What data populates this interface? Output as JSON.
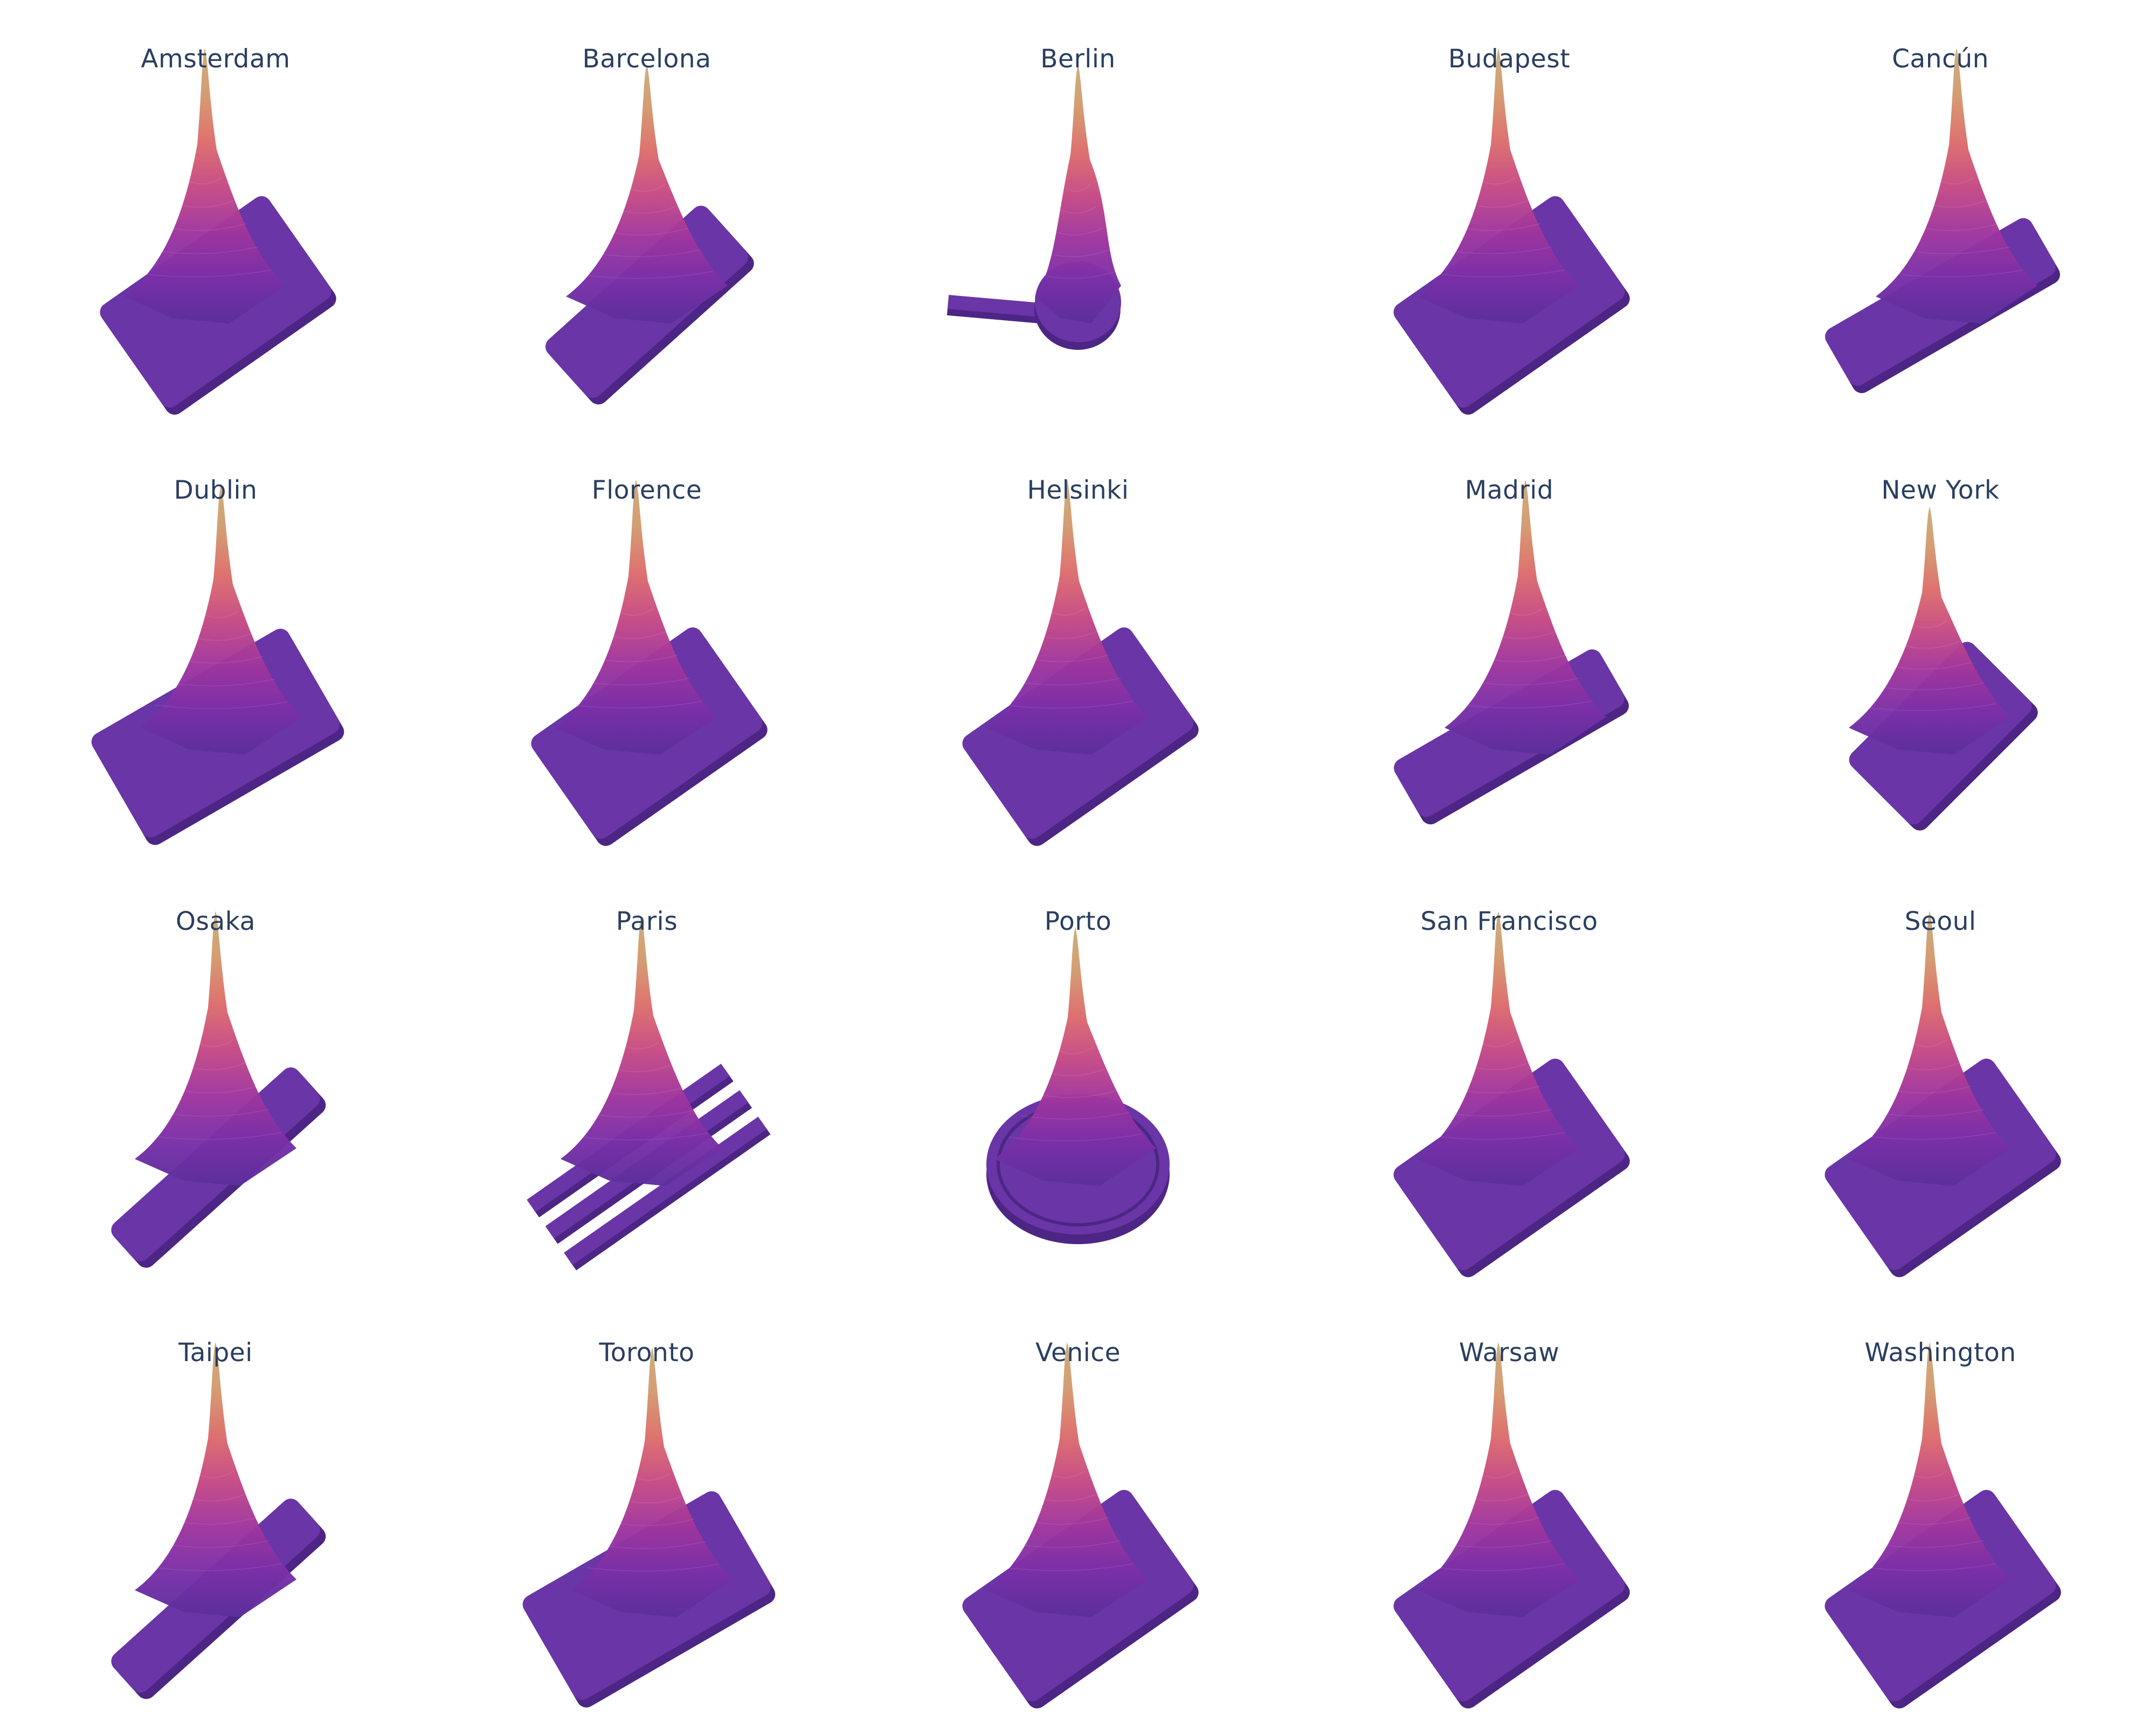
{
  "chart_data": {
    "type": "3d-surface-grid",
    "layout": {
      "rows": 4,
      "cols": 5
    },
    "colorscale": {
      "name": "plasma-like",
      "stops": [
        "#5b2f9c",
        "#7a2fa8",
        "#a0359e",
        "#c64a84",
        "#dd6e6c",
        "#d39a6e",
        "#c9ad7c"
      ]
    },
    "base_color": "#6a35a6",
    "base_edge_color": "#4d2585",
    "panels": [
      {
        "title": "Amsterdam",
        "footprint": "blob"
      },
      {
        "title": "Barcelona",
        "footprint": "diag-rect"
      },
      {
        "title": "Berlin",
        "footprint": "arm-left"
      },
      {
        "title": "Budapest",
        "footprint": "blob"
      },
      {
        "title": "Cancún",
        "footprint": "elongated"
      },
      {
        "title": "Dublin",
        "footprint": "wide-blob"
      },
      {
        "title": "Florence",
        "footprint": "blob"
      },
      {
        "title": "Helsinki",
        "footprint": "blob"
      },
      {
        "title": "Madrid",
        "footprint": "elongated"
      },
      {
        "title": "New York",
        "footprint": "scattered"
      },
      {
        "title": "Osaka",
        "footprint": "thin-diag"
      },
      {
        "title": "Paris",
        "footprint": "strips"
      },
      {
        "title": "Porto",
        "footprint": "circle"
      },
      {
        "title": "San Francisco",
        "footprint": "blob"
      },
      {
        "title": "Seoul",
        "footprint": "blob"
      },
      {
        "title": "Taipei",
        "footprint": "thin-diag"
      },
      {
        "title": "Toronto",
        "footprint": "wide-blob"
      },
      {
        "title": "Venice",
        "footprint": "blob"
      },
      {
        "title": "Warsaw",
        "footprint": "blob"
      },
      {
        "title": "Washington",
        "footprint": "blob"
      }
    ]
  }
}
